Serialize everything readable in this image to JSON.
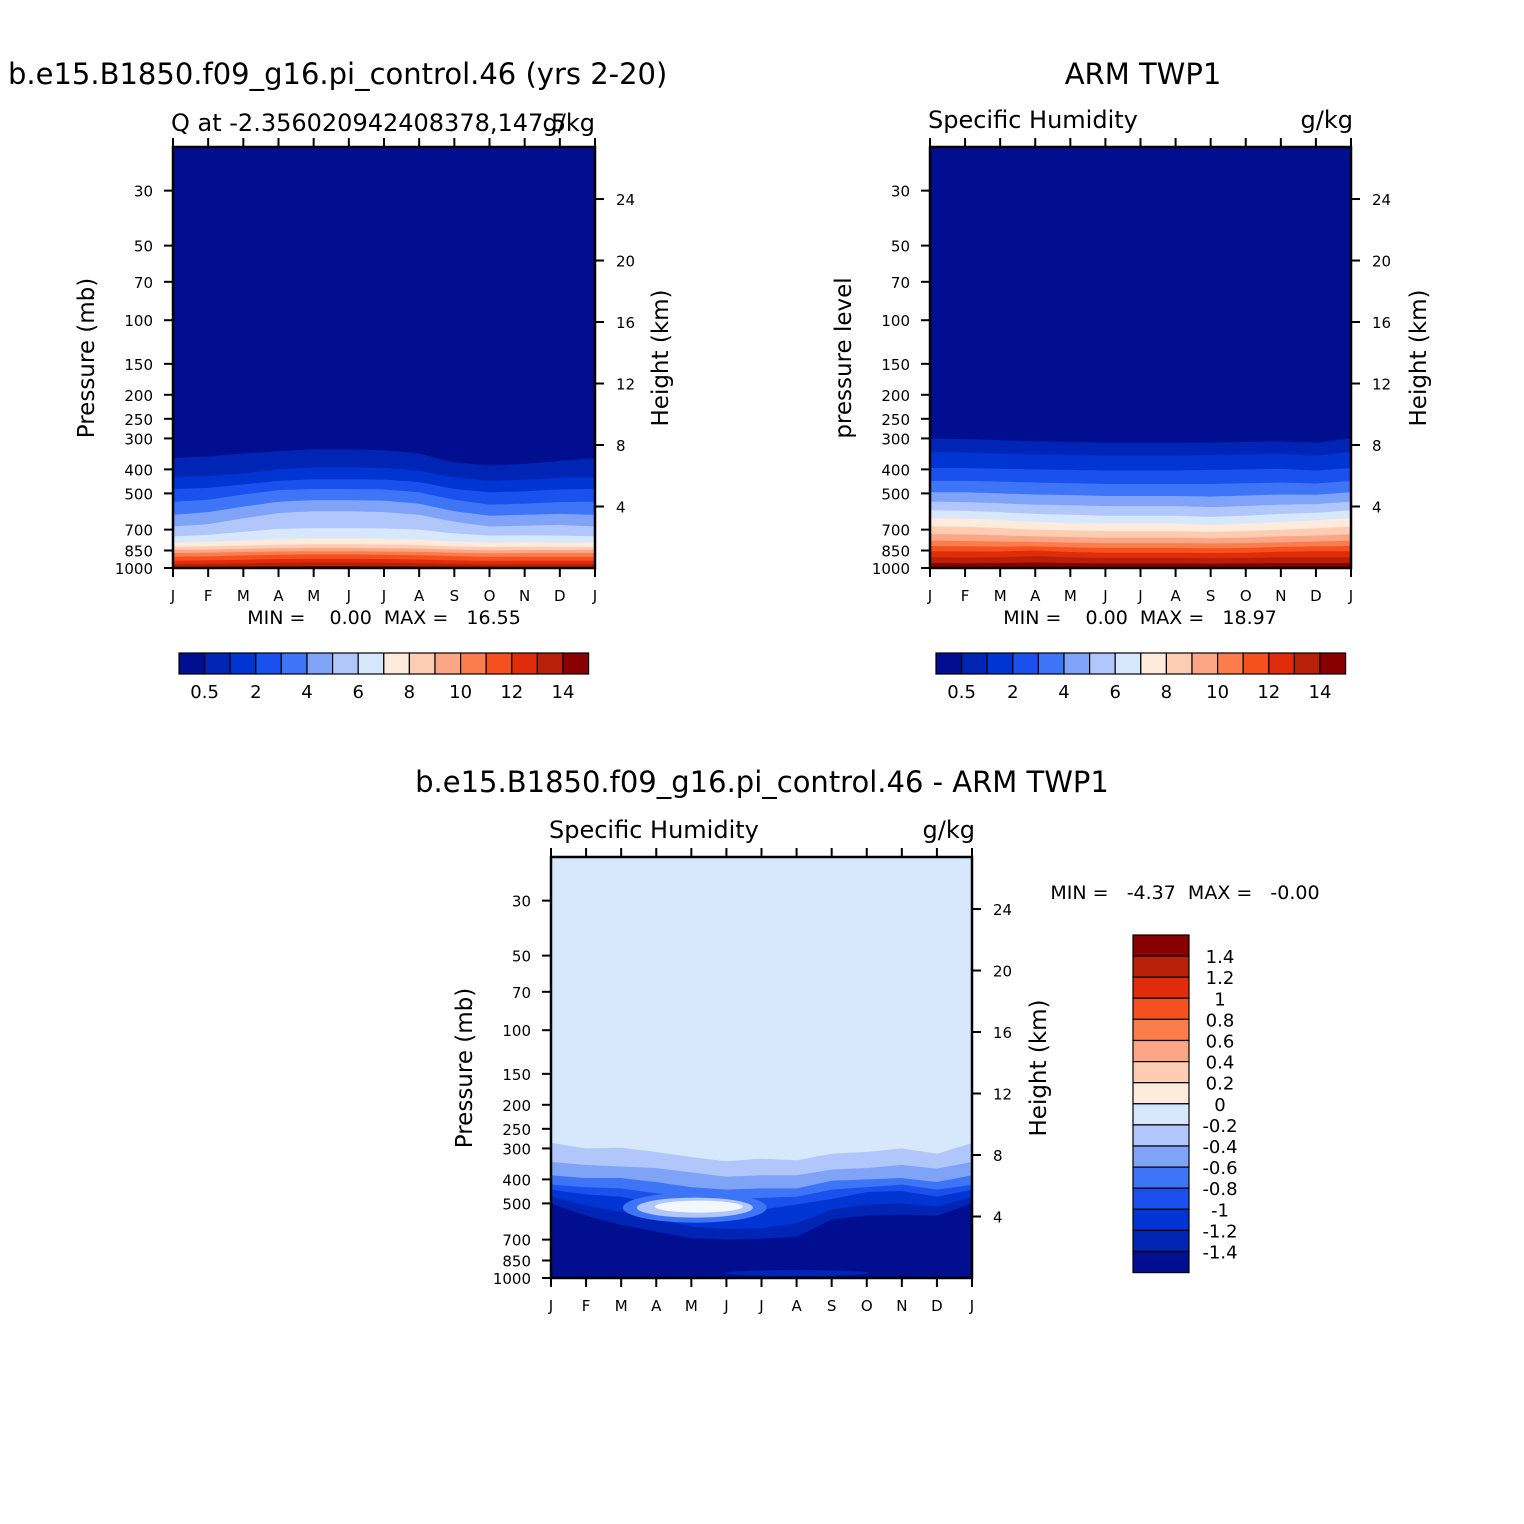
{
  "colors": {
    "levels": [
      "#000e8f",
      "#0025b4",
      "#0035d4",
      "#1a50ee",
      "#3e74f6",
      "#7fa3f7",
      "#b1c6fb",
      "#d7e8fd",
      "#feebdc",
      "#fdccb3",
      "#fba786",
      "#fb7d4e",
      "#f4511e",
      "#e02c0a",
      "#b8200a",
      "#880000"
    ],
    "diff_levels": [
      "#000e8f",
      "#0025b4",
      "#0035d4",
      "#1a50ee",
      "#3e74f6",
      "#7fa3f7",
      "#b1c6fb",
      "#d7e8fd",
      "#feebdc",
      "#fdccb3",
      "#fba786",
      "#fb7d4e",
      "#f4511e",
      "#e02c0a",
      "#b8200a",
      "#880000"
    ]
  },
  "chart_data": [
    {
      "type": "heatmap",
      "title": "b.e15.B1850.f09_g16.pi_control.46 (yrs 2-20)",
      "left_subtitle": "Q at -2.356020942408378,147.5",
      "right_subtitle": "g/kg",
      "xlabel": "",
      "ylabel": "Pressure (mb)",
      "y2label": "Height (km)",
      "x_ticks": [
        "J",
        "F",
        "M",
        "A",
        "M",
        "J",
        "J",
        "A",
        "S",
        "O",
        "N",
        "D",
        "J"
      ],
      "y_ticks": [
        "30",
        "50",
        "70",
        "100",
        "150",
        "200",
        "250",
        "300",
        "400",
        "500",
        "700",
        "850",
        "1000"
      ],
      "y2_ticks": [
        "24",
        "20",
        "16",
        "12",
        "8",
        "4"
      ],
      "ylim": [
        1000,
        20
      ],
      "y_scale": "log",
      "min_max_text": "MIN =    0.00  MAX =   16.55",
      "min": 0.0,
      "max": 16.55,
      "colorbar": {
        "orientation": "horizontal",
        "levels": [
          0.5,
          1,
          2,
          3,
          4,
          5,
          6,
          7,
          8,
          9,
          10,
          11,
          12,
          13,
          14
        ],
        "labels": [
          "0.5",
          "2",
          "4",
          "6",
          "8",
          "10",
          "12",
          "14"
        ]
      }
    },
    {
      "type": "heatmap",
      "title": "ARM TWP1",
      "left_subtitle": "Specific Humidity",
      "right_subtitle": "g/kg",
      "xlabel": "",
      "ylabel": "pressure level",
      "y2label": "Height (km)",
      "x_ticks": [
        "J",
        "F",
        "M",
        "A",
        "M",
        "J",
        "J",
        "A",
        "S",
        "O",
        "N",
        "D",
        "J"
      ],
      "y_ticks": [
        "30",
        "50",
        "70",
        "100",
        "150",
        "200",
        "250",
        "300",
        "400",
        "500",
        "700",
        "850",
        "1000"
      ],
      "y2_ticks": [
        "24",
        "20",
        "16",
        "12",
        "8",
        "4"
      ],
      "ylim": [
        1000,
        20
      ],
      "y_scale": "log",
      "min_max_text": "MIN =    0.00  MAX =   18.97",
      "min": 0.0,
      "max": 18.97,
      "colorbar": {
        "orientation": "horizontal",
        "levels": [
          0.5,
          1,
          2,
          3,
          4,
          5,
          6,
          7,
          8,
          9,
          10,
          11,
          12,
          13,
          14
        ],
        "labels": [
          "0.5",
          "2",
          "4",
          "6",
          "8",
          "10",
          "12",
          "14"
        ]
      }
    },
    {
      "type": "heatmap",
      "title": "b.e15.B1850.f09_g16.pi_control.46 - ARM TWP1",
      "left_subtitle": "Specific Humidity",
      "right_subtitle": "g/kg",
      "xlabel": "",
      "ylabel": "Pressure (mb)",
      "y2label": "Height (km)",
      "x_ticks": [
        "J",
        "F",
        "M",
        "A",
        "M",
        "J",
        "J",
        "A",
        "S",
        "O",
        "N",
        "D",
        "J"
      ],
      "y_ticks": [
        "30",
        "50",
        "70",
        "100",
        "150",
        "200",
        "250",
        "300",
        "400",
        "500",
        "700",
        "850",
        "1000"
      ],
      "y2_ticks": [
        "24",
        "20",
        "16",
        "12",
        "8",
        "4"
      ],
      "ylim": [
        1000,
        20
      ],
      "y_scale": "log",
      "min_max_text": "MIN =   -4.37  MAX =   -0.00",
      "min": -4.37,
      "max": -0.0,
      "colorbar": {
        "orientation": "vertical",
        "levels": [
          -1.4,
          -1.2,
          -1,
          -0.8,
          -0.6,
          -0.4,
          -0.2,
          0,
          0.2,
          0.4,
          0.6,
          0.8,
          1,
          1.2,
          1.4
        ],
        "labels": [
          "1.4",
          "1.2",
          "1",
          "0.8",
          "0.6",
          "0.4",
          "0.2",
          "0",
          "-0.2",
          "-0.4",
          "-0.6",
          "-0.8",
          "-1",
          "-1.2",
          "-1.4"
        ]
      }
    }
  ]
}
